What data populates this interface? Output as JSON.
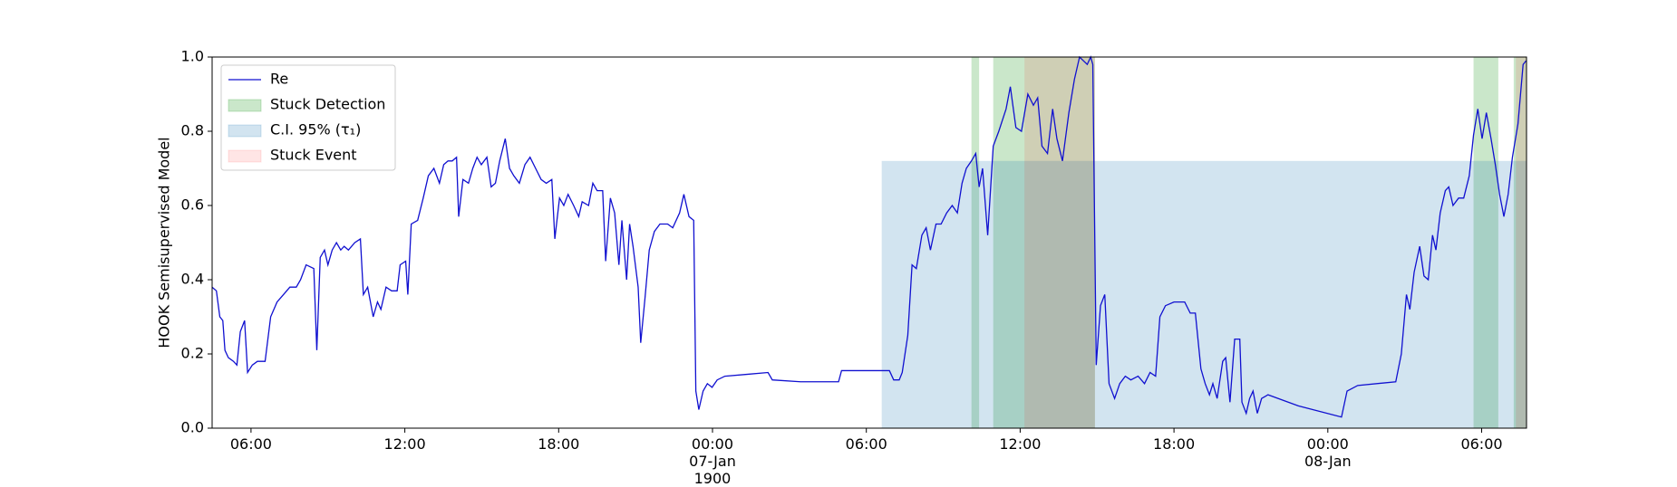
{
  "chart_data": {
    "type": "line",
    "y_label": "HOOK Semisupervised Model",
    "x": [
      "1900-01-06 04:29",
      "1900-01-06 04:39",
      "1900-01-06 04:47",
      "1900-01-06 04:54",
      "1900-01-06 04:59",
      "1900-01-06 05:07",
      "1900-01-06 05:19",
      "1900-01-06 05:27",
      "1900-01-06 05:35",
      "1900-01-06 05:45",
      "1900-01-06 05:52",
      "1900-01-06 06:03",
      "1900-01-06 06:15",
      "1900-01-06 06:33",
      "1900-01-06 06:46",
      "1900-01-06 07:01",
      "1900-01-06 07:16",
      "1900-01-06 07:31",
      "1900-01-06 07:46",
      "1900-01-06 07:56",
      "1900-01-06 08:09",
      "1900-01-06 08:27",
      "1900-01-06 08:34",
      "1900-01-06 08:42",
      "1900-01-06 08:52",
      "1900-01-06 09:00",
      "1900-01-06 09:10",
      "1900-01-06 09:20",
      "1900-01-06 09:30",
      "1900-01-06 09:38",
      "1900-01-06 09:48",
      "1900-01-06 10:03",
      "1900-01-06 10:16",
      "1900-01-06 10:23",
      "1900-01-06 10:33",
      "1900-01-06 10:46",
      "1900-01-06 10:56",
      "1900-01-06 11:04",
      "1900-01-06 11:16",
      "1900-01-06 11:29",
      "1900-01-06 11:42",
      "1900-01-06 11:49",
      "1900-01-06 12:02",
      "1900-01-06 12:07",
      "1900-01-06 12:15",
      "1900-01-06 12:30",
      "1900-01-06 12:43",
      "1900-01-06 12:55",
      "1900-01-06 13:08",
      "1900-01-06 13:21",
      "1900-01-06 13:31",
      "1900-01-06 13:41",
      "1900-01-06 13:51",
      "1900-01-06 14:01",
      "1900-01-06 14:06",
      "1900-01-06 14:16",
      "1900-01-06 14:29",
      "1900-01-06 14:39",
      "1900-01-06 14:49",
      "1900-01-06 14:59",
      "1900-01-06 15:12",
      "1900-01-06 15:22",
      "1900-01-06 15:32",
      "1900-01-06 15:42",
      "1900-01-06 15:55",
      "1900-01-06 16:05",
      "1900-01-06 16:15",
      "1900-01-06 16:28",
      "1900-01-06 16:41",
      "1900-01-06 16:53",
      "1900-01-06 17:06",
      "1900-01-06 17:19",
      "1900-01-06 17:31",
      "1900-01-06 17:44",
      "1900-01-06 17:51",
      "1900-01-06 18:02",
      "1900-01-06 18:12",
      "1900-01-06 18:22",
      "1900-01-06 18:35",
      "1900-01-06 18:47",
      "1900-01-06 18:55",
      "1900-01-06 19:10",
      "1900-01-06 19:20",
      "1900-01-06 19:30",
      "1900-01-06 19:43",
      "1900-01-06 19:50",
      "1900-01-06 20:01",
      "1900-01-06 20:11",
      "1900-01-06 20:21",
      "1900-01-06 20:28",
      "1900-01-06 20:39",
      "1900-01-06 20:46",
      "1900-01-06 20:54",
      "1900-01-06 21:06",
      "1900-01-06 21:12",
      "1900-01-06 21:22",
      "1900-01-06 21:32",
      "1900-01-06 21:44",
      "1900-01-06 21:57",
      "1900-01-06 22:15",
      "1900-01-06 22:27",
      "1900-01-06 22:43",
      "1900-01-06 22:53",
      "1900-01-06 23:05",
      "1900-01-06 23:16",
      "1900-01-06 23:21",
      "1900-01-06 23:28",
      "1900-01-06 23:38",
      "1900-01-06 23:48",
      "1900-01-06 23:59",
      "1900-01-07 00:11",
      "1900-01-07 00:29",
      "1900-01-07 01:20",
      "1900-01-07 02:10",
      "1900-01-07 02:20",
      "1900-01-07 03:26",
      "1900-01-07 04:55",
      "1900-01-07 05:02",
      "1900-01-07 06:54",
      "1900-01-07 07:04",
      "1900-01-07 07:17",
      "1900-01-07 07:24",
      "1900-01-07 07:37",
      "1900-01-07 07:47",
      "1900-01-07 07:57",
      "1900-01-07 08:10",
      "1900-01-07 08:20",
      "1900-01-07 08:30",
      "1900-01-07 08:43",
      "1900-01-07 08:55",
      "1900-01-07 09:08",
      "1900-01-07 09:21",
      "1900-01-07 09:33",
      "1900-01-07 09:44",
      "1900-01-07 09:54",
      "1900-01-07 10:06",
      "1900-01-07 10:16",
      "1900-01-07 10:24",
      "1900-01-07 10:32",
      "1900-01-07 10:44",
      "1900-01-07 10:57",
      "1900-01-07 11:10",
      "1900-01-07 11:27",
      "1900-01-07 11:37",
      "1900-01-07 11:50",
      "1900-01-07 12:03",
      "1900-01-07 12:18",
      "1900-01-07 12:31",
      "1900-01-07 12:41",
      "1900-01-07 12:51",
      "1900-01-07 13:04",
      "1900-01-07 13:16",
      "1900-01-07 13:26",
      "1900-01-07 13:39",
      "1900-01-07 13:54",
      "1900-01-07 14:07",
      "1900-01-07 14:19",
      "1900-01-07 14:37",
      "1900-01-07 14:45",
      "1900-01-07 14:50",
      "1900-01-07 14:58",
      "1900-01-07 15:08",
      "1900-01-07 15:18",
      "1900-01-07 15:28",
      "1900-01-07 15:41",
      "1900-01-07 15:53",
      "1900-01-07 16:06",
      "1900-01-07 16:19",
      "1900-01-07 16:36",
      "1900-01-07 16:51",
      "1900-01-07 17:04",
      "1900-01-07 17:17",
      "1900-01-07 17:27",
      "1900-01-07 17:40",
      "1900-01-07 18:00",
      "1900-01-07 18:25",
      "1900-01-07 18:38",
      "1900-01-07 18:50",
      "1900-01-07 19:03",
      "1900-01-07 19:13",
      "1900-01-07 19:23",
      "1900-01-07 19:31",
      "1900-01-07 19:41",
      "1900-01-07 19:54",
      "1900-01-07 20:01",
      "1900-01-07 20:11",
      "1900-01-07 20:22",
      "1900-01-07 20:34",
      "1900-01-07 20:39",
      "1900-01-07 20:49",
      "1900-01-07 20:57",
      "1900-01-07 21:05",
      "1900-01-07 21:15",
      "1900-01-07 21:25",
      "1900-01-07 21:40",
      "1900-01-07 22:51",
      "1900-01-08 00:32",
      "1900-01-08 00:45",
      "1900-01-08 01:10",
      "1900-01-08 02:39",
      "1900-01-08 02:52",
      "1900-01-08 03:04",
      "1900-01-08 03:12",
      "1900-01-08 03:22",
      "1900-01-08 03:35",
      "1900-01-08 03:45",
      "1900-01-08 03:55",
      "1900-01-08 04:05",
      "1900-01-08 04:13",
      "1900-01-08 04:23",
      "1900-01-08 04:35",
      "1900-01-08 04:43",
      "1900-01-08 04:53",
      "1900-01-08 05:06",
      "1900-01-08 05:18",
      "1900-01-08 05:31",
      "1900-01-08 05:41",
      "1900-01-08 05:51",
      "1900-01-08 06:01",
      "1900-01-08 06:11",
      "1900-01-08 06:22",
      "1900-01-08 06:32",
      "1900-01-08 06:42",
      "1900-01-08 06:52",
      "1900-01-08 07:02",
      "1900-01-08 07:12",
      "1900-01-08 07:25",
      "1900-01-08 07:37",
      "1900-01-08 07:44"
    ],
    "series": [
      {
        "name": "Re",
        "color": "#1010d0",
        "values": [
          0.38,
          0.37,
          0.3,
          0.29,
          0.21,
          0.19,
          0.18,
          0.17,
          0.26,
          0.29,
          0.15,
          0.17,
          0.18,
          0.18,
          0.3,
          0.34,
          0.36,
          0.38,
          0.38,
          0.4,
          0.44,
          0.43,
          0.21,
          0.46,
          0.48,
          0.44,
          0.48,
          0.5,
          0.48,
          0.49,
          0.48,
          0.5,
          0.51,
          0.36,
          0.38,
          0.3,
          0.34,
          0.32,
          0.38,
          0.37,
          0.37,
          0.44,
          0.45,
          0.36,
          0.55,
          0.56,
          0.62,
          0.68,
          0.7,
          0.66,
          0.71,
          0.72,
          0.72,
          0.73,
          0.57,
          0.67,
          0.66,
          0.7,
          0.73,
          0.71,
          0.73,
          0.65,
          0.66,
          0.72,
          0.78,
          0.7,
          0.68,
          0.66,
          0.71,
          0.73,
          0.7,
          0.67,
          0.66,
          0.67,
          0.51,
          0.62,
          0.6,
          0.63,
          0.6,
          0.57,
          0.61,
          0.6,
          0.66,
          0.64,
          0.64,
          0.45,
          0.62,
          0.58,
          0.44,
          0.56,
          0.4,
          0.55,
          0.49,
          0.38,
          0.23,
          0.35,
          0.48,
          0.53,
          0.55,
          0.55,
          0.54,
          0.58,
          0.63,
          0.57,
          0.56,
          0.1,
          0.05,
          0.1,
          0.12,
          0.11,
          0.13,
          0.14,
          0.145,
          0.15,
          0.13,
          0.125,
          0.125,
          0.155,
          0.155,
          0.13,
          0.13,
          0.15,
          0.25,
          0.44,
          0.43,
          0.52,
          0.54,
          0.48,
          0.55,
          0.55,
          0.58,
          0.6,
          0.58,
          0.66,
          0.7,
          0.72,
          0.74,
          0.65,
          0.7,
          0.52,
          0.76,
          0.8,
          0.86,
          0.92,
          0.81,
          0.8,
          0.9,
          0.87,
          0.89,
          0.76,
          0.74,
          0.86,
          0.78,
          0.72,
          0.85,
          0.94,
          1.0,
          0.98,
          1.0,
          0.98,
          0.17,
          0.33,
          0.36,
          0.12,
          0.08,
          0.12,
          0.14,
          0.13,
          0.14,
          0.12,
          0.15,
          0.14,
          0.3,
          0.33,
          0.34,
          0.34,
          0.31,
          0.31,
          0.16,
          0.12,
          0.09,
          0.12,
          0.08,
          0.18,
          0.19,
          0.07,
          0.24,
          0.24,
          0.07,
          0.04,
          0.08,
          0.1,
          0.04,
          0.08,
          0.09,
          0.06,
          0.03,
          0.1,
          0.115,
          0.125,
          0.2,
          0.36,
          0.32,
          0.42,
          0.49,
          0.41,
          0.4,
          0.52,
          0.48,
          0.58,
          0.64,
          0.65,
          0.6,
          0.62,
          0.62,
          0.68,
          0.79,
          0.86,
          0.78,
          0.85,
          0.78,
          0.71,
          0.63,
          0.57,
          0.63,
          0.73,
          0.82,
          0.98,
          0.99
        ]
      }
    ],
    "spans": [
      {
        "name": "Stuck Detection",
        "color": "#2ca02c",
        "alpha": 0.25,
        "ranges": [
          [
            "1900-01-07 10:06",
            "1900-01-07 10:24"
          ],
          [
            "1900-01-07 10:57",
            "1900-01-07 14:55"
          ],
          [
            "1900-01-08 05:41",
            "1900-01-08 06:39"
          ],
          [
            "1900-01-08 07:15",
            "1900-01-08 07:45"
          ]
        ]
      },
      {
        "name": "C.I. 95% (τ₁)",
        "color": "#1f77b4",
        "alpha": 0.2,
        "ymax": 0.72,
        "ranges": [
          [
            "1900-01-07 06:36",
            "1900-01-08 07:45"
          ]
        ]
      },
      {
        "name": "Stuck Event",
        "color": "#ff0000",
        "alpha": 0.1,
        "ranges": [
          [
            "1900-01-07 12:10",
            "1900-01-07 14:55"
          ],
          [
            "1900-01-08 07:20",
            "1900-01-08 07:45"
          ]
        ]
      }
    ],
    "xlim": [
      "1900-01-06 04:29",
      "1900-01-08 07:45"
    ],
    "xticks": [
      {
        "value": "1900-01-06 06:00",
        "label": "06:00"
      },
      {
        "value": "1900-01-06 12:00",
        "label": "12:00"
      },
      {
        "value": "1900-01-06 18:00",
        "label": "18:00"
      },
      {
        "value": "1900-01-07 00:00",
        "label": "00:00\n07-Jan\n1900"
      },
      {
        "value": "1900-01-07 06:00",
        "label": "06:00"
      },
      {
        "value": "1900-01-07 12:00",
        "label": "12:00"
      },
      {
        "value": "1900-01-07 18:00",
        "label": "18:00"
      },
      {
        "value": "1900-01-08 00:00",
        "label": "00:00\n08-Jan"
      },
      {
        "value": "1900-01-08 06:00",
        "label": "06:00"
      }
    ],
    "ylim": [
      0,
      1
    ],
    "yticks": [
      {
        "value": 0,
        "label": "0.0"
      },
      0.2,
      0.4,
      0.6,
      0.8,
      {
        "value": 1,
        "label": "1.0"
      }
    ],
    "legend": "upper left"
  }
}
